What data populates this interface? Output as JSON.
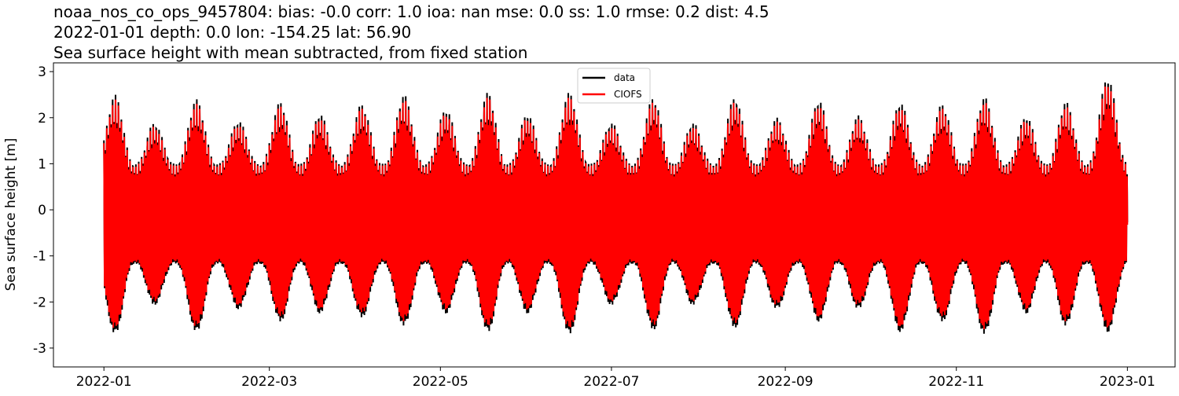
{
  "chart_data": {
    "type": "line",
    "title_lines": [
      "noaa_nos_co_ops_9457804: bias: -0.0  corr: 1.0  ioa: nan  mse: 0.0  ss: 1.0  rmse: 0.2  dist: 4.5",
      "2022-01-01 depth: 0.0 lon: -154.25 lat: 56.90",
      "Sea surface height with mean subtracted, from fixed station"
    ],
    "ylabel": "Sea surface height [m]",
    "xlabel": "",
    "ylim": [
      -3.41,
      3.19
    ],
    "xlim": [
      "2021-12-14",
      "2023-01-18"
    ],
    "yticks": [
      3,
      2,
      1,
      0,
      -1,
      -2,
      -3
    ],
    "xticks": [
      "2022-01",
      "2022-03",
      "2022-05",
      "2022-07",
      "2022-09",
      "2022-11",
      "2023-01"
    ],
    "grid": false,
    "legend": {
      "placement": "top-center",
      "entries": [
        "data",
        "CIOFS"
      ]
    },
    "series": [
      {
        "name": "data",
        "color": "#000000"
      },
      {
        "name": "CIOFS",
        "color": "#ff0000"
      }
    ],
    "spring_tide_dates": [
      "2022-01-05",
      "2022-01-19",
      "2022-02-03",
      "2022-02-18",
      "2022-03-05",
      "2022-03-19",
      "2022-04-03",
      "2022-04-18",
      "2022-05-03",
      "2022-05-18",
      "2022-06-01",
      "2022-06-16",
      "2022-07-01",
      "2022-07-16",
      "2022-07-30",
      "2022-08-14",
      "2022-08-29",
      "2022-09-13",
      "2022-09-27",
      "2022-10-12",
      "2022-10-27",
      "2022-11-11",
      "2022-11-26",
      "2022-12-10",
      "2022-12-25"
    ],
    "data_spring_high": [
      2.5,
      1.9,
      2.4,
      1.95,
      2.35,
      2.1,
      2.3,
      2.5,
      2.2,
      2.55,
      2.1,
      2.55,
      1.9,
      2.45,
      1.9,
      2.45,
      2.0,
      2.4,
      2.05,
      2.35,
      2.3,
      2.45,
      2.05,
      2.35,
      2.9
    ],
    "data_spring_low": [
      -3.0,
      -2.3,
      -2.95,
      -2.4,
      -2.7,
      -2.5,
      -2.6,
      -2.8,
      -2.5,
      -2.95,
      -2.5,
      -3.0,
      -2.3,
      -2.9,
      -2.3,
      -2.85,
      -2.4,
      -2.7,
      -2.4,
      -2.95,
      -2.7,
      -3.0,
      -2.5,
      -2.8,
      -2.95
    ],
    "neap_high": 1.0,
    "neap_low": -1.3,
    "model_scale": 0.96
  }
}
